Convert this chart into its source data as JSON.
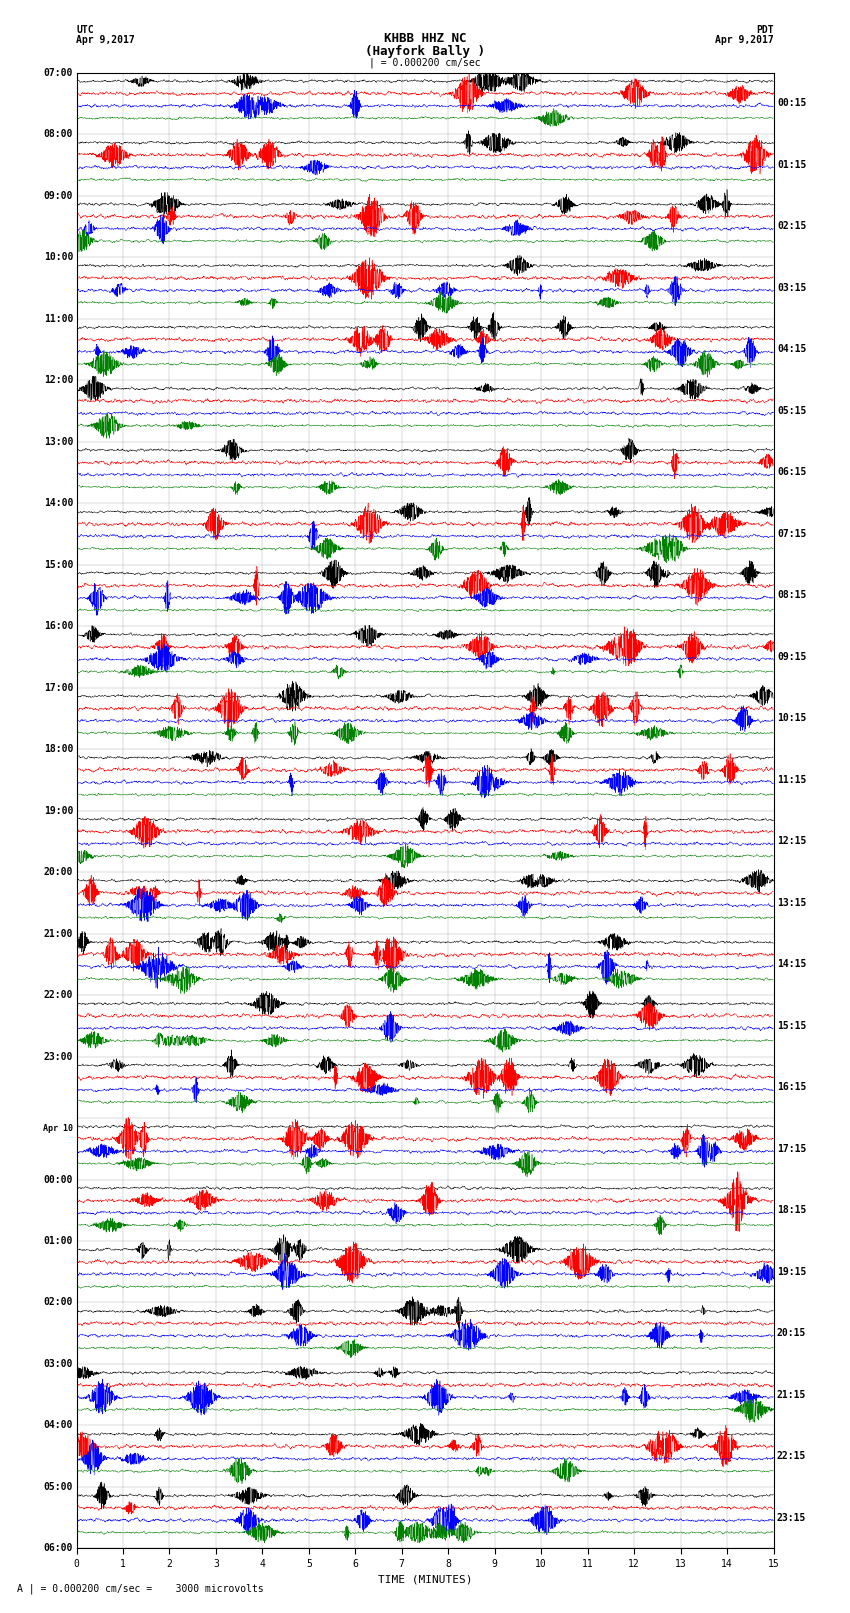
{
  "title_line1": "KHBB HHZ NC",
  "title_line2": "(Hayfork Bally )",
  "scale_bar": "| = 0.000200 cm/sec",
  "left_label_top": "UTC",
  "left_label_date": "Apr 9,2017",
  "right_label_top": "PDT",
  "right_label_date": "Apr 9,2017",
  "xlabel": "TIME (MINUTES)",
  "footer": "A | = 0.000200 cm/sec =    3000 microvolts",
  "bg_color": "#ffffff",
  "trace_colors": [
    "#000000",
    "#ff0000",
    "#0000ff",
    "#008000"
  ],
  "left_times_utc": [
    "07:00",
    "08:00",
    "09:00",
    "10:00",
    "11:00",
    "12:00",
    "13:00",
    "14:00",
    "15:00",
    "16:00",
    "17:00",
    "18:00",
    "19:00",
    "20:00",
    "21:00",
    "22:00",
    "23:00",
    "Apr10",
    "00:00",
    "01:00",
    "02:00",
    "03:00",
    "04:00",
    "05:00",
    "06:00"
  ],
  "right_times_pdt": [
    "00:15",
    "01:15",
    "02:15",
    "03:15",
    "04:15",
    "05:15",
    "06:15",
    "07:15",
    "08:15",
    "09:15",
    "10:15",
    "11:15",
    "12:15",
    "13:15",
    "14:15",
    "15:15",
    "16:15",
    "17:15",
    "18:15",
    "19:15",
    "20:15",
    "21:15",
    "22:15",
    "23:15"
  ],
  "n_rows": 24,
  "traces_per_row": 4,
  "xlim": [
    0,
    15
  ],
  "xticks": [
    0,
    1,
    2,
    3,
    4,
    5,
    6,
    7,
    8,
    9,
    10,
    11,
    12,
    13,
    14,
    15
  ],
  "font_size_title": 9,
  "font_size_labels": 7,
  "font_size_time": 7,
  "seed": 42
}
